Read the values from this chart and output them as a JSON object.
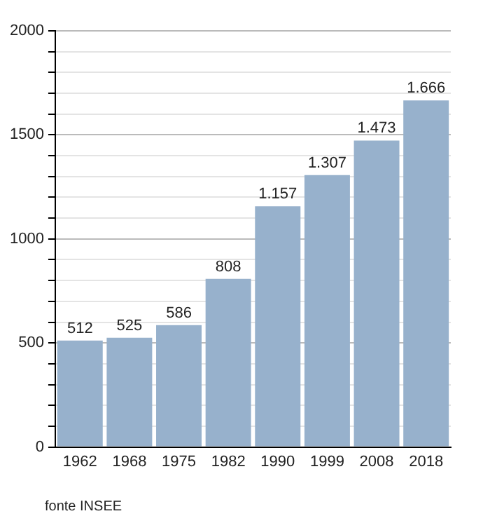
{
  "chart_data": {
    "type": "bar",
    "categories": [
      "1962",
      "1968",
      "1975",
      "1982",
      "1990",
      "1999",
      "2008",
      "2018"
    ],
    "values": [
      512,
      525,
      586,
      808,
      1157,
      1307,
      1473,
      1666
    ],
    "value_labels": [
      "512",
      "525",
      "586",
      "808",
      "1.157",
      "1.307",
      "1.473",
      "1.666"
    ],
    "color": "#97b1cc",
    "ylim": [
      0,
      2000
    ],
    "yticks": [
      0,
      {
        "value": 100,
        "label": null
      },
      {
        "value": 200,
        "label": null
      },
      {
        "value": 300,
        "label": null
      },
      {
        "value": 400,
        "label": null
      },
      500,
      {
        "value": 600,
        "label": null
      },
      {
        "value": 700,
        "label": null
      },
      {
        "value": 800,
        "label": null
      },
      {
        "value": 900,
        "label": null
      },
      1000,
      {
        "value": 1100,
        "label": null
      },
      {
        "value": 1200,
        "label": null
      },
      {
        "value": 1300,
        "label": null
      },
      {
        "value": 1400,
        "label": null
      },
      1500,
      {
        "value": 1600,
        "label": null
      },
      {
        "value": 1700,
        "label": null
      },
      {
        "value": 1800,
        "label": null
      },
      {
        "value": 1900,
        "label": null
      },
      2000
    ],
    "grid": true,
    "legend": false,
    "annotations": [
      "fonte INSEE"
    ]
  }
}
